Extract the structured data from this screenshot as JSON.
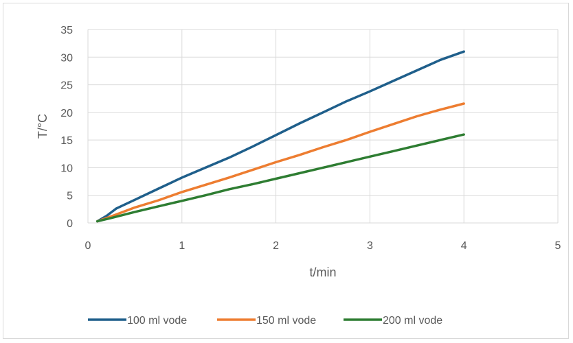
{
  "chart_data": {
    "type": "line",
    "xlabel": "t/min",
    "ylabel": "T/°C",
    "xlim": [
      0,
      5
    ],
    "ylim": [
      0,
      35
    ],
    "x_ticks": [
      0,
      1,
      2,
      3,
      4,
      5
    ],
    "y_ticks": [
      0,
      5,
      10,
      15,
      20,
      25,
      30,
      35
    ],
    "grid": true,
    "legend_position": "bottom",
    "series": [
      {
        "name": "100 ml vode",
        "color": "#1f5f8b",
        "x": [
          0.1,
          0.2,
          0.3,
          0.5,
          0.75,
          1.0,
          1.25,
          1.5,
          1.75,
          2.0,
          2.25,
          2.5,
          2.75,
          3.0,
          3.25,
          3.5,
          3.75,
          4.0
        ],
        "y": [
          0.3,
          1.3,
          2.6,
          4.2,
          6.2,
          8.2,
          10.0,
          11.8,
          13.8,
          15.9,
          18.0,
          20.0,
          22.0,
          23.8,
          25.7,
          27.6,
          29.5,
          31.0
        ]
      },
      {
        "name": "150 ml vode",
        "color": "#ed7d31",
        "x": [
          0.1,
          0.25,
          0.5,
          0.75,
          1.0,
          1.25,
          1.5,
          1.75,
          2.0,
          2.25,
          2.5,
          2.75,
          3.0,
          3.25,
          3.5,
          3.75,
          4.0
        ],
        "y": [
          0.3,
          1.2,
          2.8,
          4.1,
          5.6,
          6.9,
          8.2,
          9.6,
          11.0,
          12.3,
          13.7,
          15.0,
          16.5,
          17.9,
          19.3,
          20.5,
          21.6
        ]
      },
      {
        "name": "200 ml vode",
        "color": "#2e7d32",
        "x": [
          0.1,
          0.25,
          0.5,
          0.75,
          1.0,
          1.25,
          1.5,
          1.75,
          2.0,
          2.25,
          2.5,
          2.75,
          3.0,
          3.25,
          3.5,
          3.75,
          4.0
        ],
        "y": [
          0.3,
          0.9,
          2.0,
          3.0,
          4.0,
          5.0,
          6.1,
          7.0,
          8.0,
          9.0,
          10.0,
          11.0,
          12.0,
          13.0,
          14.0,
          15.0,
          16.0
        ]
      }
    ]
  }
}
